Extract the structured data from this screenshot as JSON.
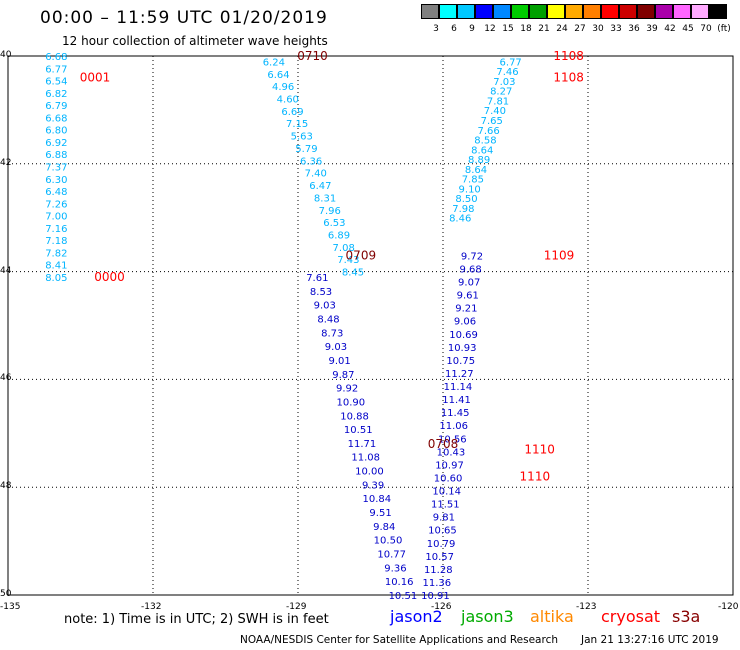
{
  "header": {
    "title": "00:00 – 11:59 UTC 01/20/2019",
    "subtitle": "12 hour collection of altimeter wave heights"
  },
  "legend": {
    "colors": [
      "#808080",
      "#00ffff",
      "#00c8ff",
      "#0000ff",
      "#0088ff",
      "#00cc00",
      "#00a000",
      "#ffff00",
      "#ffaa00",
      "#ff7f00",
      "#ff0000",
      "#cc0000",
      "#800000",
      "#aa00aa",
      "#ff66ff",
      "#ffaaff",
      "#000000"
    ],
    "labels": [
      "3",
      "6",
      "9",
      "12",
      "15",
      "18",
      "21",
      "24",
      "27",
      "30",
      "33",
      "36",
      "39",
      "42",
      "45",
      "70",
      "(ft)"
    ]
  },
  "axes": {
    "lat_labels": [
      "40",
      "42",
      "44",
      "46",
      "48",
      "50"
    ],
    "lon_labels": [
      "-135",
      "-132",
      "-129",
      "-126",
      "-123",
      "-120"
    ]
  },
  "map_data": {
    "lat_range": [
      40,
      50
    ],
    "lon_range": [
      -135,
      -120
    ],
    "track_colors": {
      "cyan": "#00b4ff",
      "blue": "#0000c8",
      "time_dark": "#800000",
      "time_red": "#ff0000"
    },
    "tracks": [
      {
        "lon": -134.0,
        "lat_start": 40.0,
        "lat_end": 44.1,
        "color": "cyan",
        "values": [
          "6.68",
          "6.77",
          "6.54",
          "6.82",
          "6.79",
          "6.68",
          "6.80",
          "6.92",
          "6.88",
          "7.37",
          "6.30",
          "6.48",
          "7.26",
          "7.00",
          "7.16",
          "7.18",
          "7.82",
          "8.41",
          "8.05"
        ]
      },
      {
        "lon": -129.5,
        "lat_start": 40.1,
        "lat_end": 44.0,
        "color": "cyan",
        "slope": 0.42,
        "values": [
          "6.24",
          "6.64",
          "4.96",
          "4.60",
          "6.69",
          "7.15",
          "5.63",
          "5.79",
          "6.36",
          "7.40",
          "6.47",
          "8.31",
          "7.96",
          "6.53",
          "6.89",
          "7.08",
          "7.43",
          "8.45"
        ]
      },
      {
        "lon": -128.6,
        "lat_start": 44.1,
        "lat_end": 50.0,
        "color": "blue",
        "slope": 0.3,
        "values": [
          "7.61",
          "8.53",
          "9.03",
          "8.48",
          "8.73",
          "9.03",
          "9.01",
          "9.87",
          "9.92",
          "10.90",
          "10.88",
          "10.51",
          "11.71",
          "11.08",
          "10.00",
          "9.39",
          "10.84",
          "9.51",
          "9.84",
          "10.50",
          "10.77",
          "9.36",
          "10.16",
          "10.51"
        ]
      },
      {
        "lon": -124.6,
        "lat_start": 40.1,
        "lat_end": 43.0,
        "color": "cyan",
        "slope": -0.36,
        "values": [
          "6.77",
          "7.46",
          "7.03",
          "8.27",
          "7.81",
          "7.40",
          "7.65",
          "7.66",
          "8.58",
          "8.64",
          "8.89",
          "8.64",
          "7.85",
          "9.10",
          "8.50",
          "7.98",
          "8.46"
        ]
      },
      {
        "lon": -125.4,
        "lat_start": 43.7,
        "lat_end": 50.0,
        "color": "blue",
        "slope": -0.12,
        "values": [
          "9.72",
          "9.68",
          "9.07",
          "9.61",
          "9.21",
          "9.06",
          "10.69",
          "10.93",
          "10.75",
          "11.27",
          "11.14",
          "11.41",
          "11.45",
          "11.06",
          "10.56",
          "10.43",
          "10.97",
          "10.60",
          "10.14",
          "11.51",
          "9.81",
          "10.65",
          "10.79",
          "10.57",
          "11.28",
          "11.36",
          "10.91"
        ]
      }
    ],
    "time_labels": [
      {
        "text": "0001",
        "lon": -133.2,
        "lat": 40.4,
        "color": "time_red"
      },
      {
        "text": "0000",
        "lon": -132.9,
        "lat": 44.1,
        "color": "time_red"
      },
      {
        "text": "0710",
        "lon": -128.7,
        "lat": 40.0,
        "color": "time_dark"
      },
      {
        "text": "0709",
        "lon": -127.7,
        "lat": 43.7,
        "color": "time_dark"
      },
      {
        "text": "0708",
        "lon": -126.0,
        "lat": 47.2,
        "color": "time_dark"
      },
      {
        "text": "1108",
        "lon": -123.4,
        "lat": 40.0,
        "color": "time_red"
      },
      {
        "text": "1108",
        "lon": -123.4,
        "lat": 40.4,
        "color": "time_red"
      },
      {
        "text": "1109",
        "lon": -123.6,
        "lat": 43.7,
        "color": "time_red"
      },
      {
        "text": "1110",
        "lon": -124.0,
        "lat": 47.3,
        "color": "time_red"
      },
      {
        "text": "1110",
        "lon": -124.1,
        "lat": 47.8,
        "color": "time_red"
      }
    ]
  },
  "footer": {
    "note": "note:  1) Time is in UTC; 2) SWH is in feet",
    "satellites": [
      {
        "name": "jason2",
        "color": "#0000ff"
      },
      {
        "name": "jason3",
        "color": "#00aa00"
      },
      {
        "name": "altika",
        "color": "#ff8800"
      },
      {
        "name": "cryosat",
        "color": "#ff0000"
      },
      {
        "name": "s3a",
        "color": "#880000"
      }
    ],
    "credit": "NOAA/NESDIS Center for Satellite Applications and Research",
    "timestamp": "Jan 21 13:27:16 UTC 2019"
  }
}
